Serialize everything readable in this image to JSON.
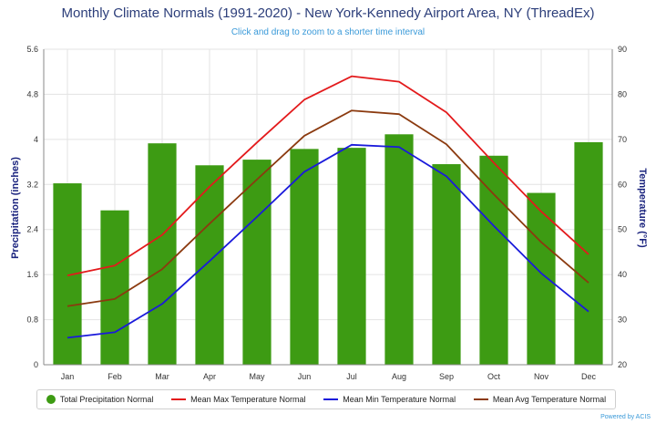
{
  "chart_data": {
    "type": "bar",
    "title": "Monthly Climate Normals (1991-2020) - New York-Kennedy Airport Area, NY (ThreadEx)",
    "subtitle": "Click and drag to zoom to a shorter time interval",
    "categories": [
      "Jan",
      "Feb",
      "Mar",
      "Apr",
      "May",
      "Jun",
      "Jul",
      "Aug",
      "Sep",
      "Oct",
      "Nov",
      "Dec"
    ],
    "y_left": {
      "label": "Precipitation (inches)",
      "ylim": [
        0,
        5.6
      ],
      "ticks": [
        "0",
        "0.8",
        "1.6",
        "2.4",
        "3.2",
        "4",
        "4.8",
        "5.6"
      ]
    },
    "y_right": {
      "label": "Temperature (°F)",
      "ylim": [
        20,
        90
      ],
      "ticks": [
        "20",
        "30",
        "40",
        "50",
        "60",
        "70",
        "80",
        "90"
      ]
    },
    "series": [
      {
        "name": "Total Precipitation Normal",
        "type": "bar",
        "axis": "left",
        "color": "#3d9b13",
        "values": [
          3.22,
          2.74,
          3.93,
          3.54,
          3.64,
          3.83,
          3.85,
          4.09,
          3.56,
          3.71,
          3.05,
          3.95
        ]
      },
      {
        "name": "Mean Max Temperature Normal",
        "type": "line",
        "axis": "right",
        "color": "#e31a1c",
        "values": [
          39.8,
          42.0,
          48.8,
          59.5,
          69.3,
          78.8,
          84.0,
          82.8,
          76.0,
          64.8,
          54.0,
          44.5
        ]
      },
      {
        "name": "Mean Min Temperature Normal",
        "type": "line",
        "axis": "right",
        "color": "#1a1adb",
        "values": [
          26.0,
          27.2,
          33.5,
          43.0,
          52.8,
          62.8,
          68.8,
          68.3,
          61.8,
          50.8,
          40.3,
          31.8
        ]
      },
      {
        "name": "Mean Avg Temperature Normal",
        "type": "line",
        "axis": "right",
        "color": "#8b3a0f",
        "values": [
          33.0,
          34.6,
          41.2,
          51.3,
          61.1,
          70.8,
          76.4,
          75.6,
          68.9,
          57.8,
          47.2,
          38.2
        ]
      }
    ],
    "grid": true,
    "legend_position": "bottom"
  },
  "credit": "Powered by ACIS"
}
